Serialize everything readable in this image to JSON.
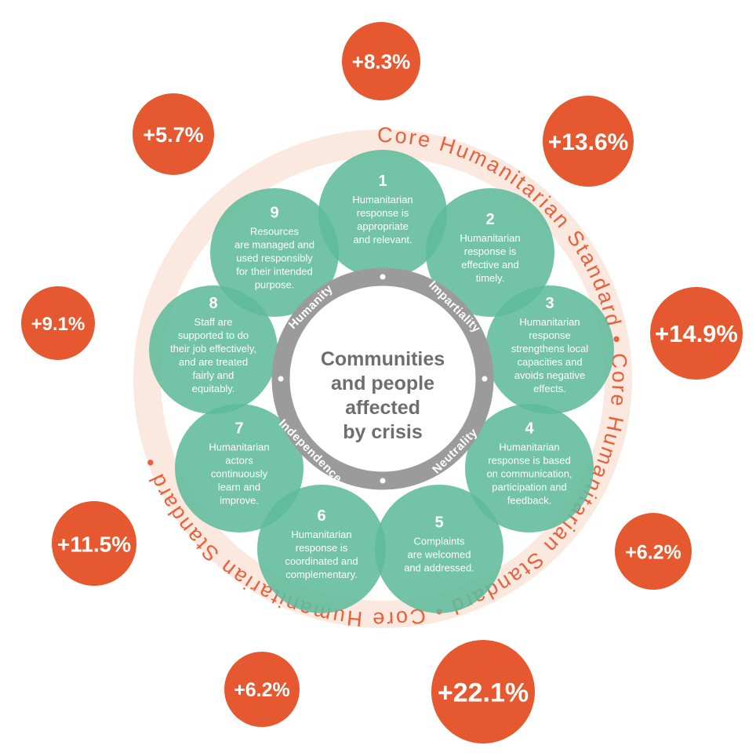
{
  "colors": {
    "orange": "#e6582f",
    "ring_fill": "#fbe8df",
    "ring_text": "#e8603c",
    "teal": "#5fbb9c",
    "grey_ring": "#9b9b9b",
    "center_text": "#6e6e6e"
  },
  "outer_ring": {
    "segments": [
      "Core",
      "Humanitarian",
      "Standard"
    ],
    "repeat": 3
  },
  "principles": [
    "Humanity",
    "Impartiality",
    "Neutrality",
    "Independence"
  ],
  "center": {
    "lines": [
      "Communities",
      "and people",
      "affected",
      "by crisis"
    ]
  },
  "commitments": [
    {
      "number": "1",
      "lines": [
        "Humanitarian",
        "response is",
        "appropriate",
        "and relevant."
      ]
    },
    {
      "number": "2",
      "lines": [
        "Humanitarian",
        "response is",
        "effective and",
        "timely."
      ]
    },
    {
      "number": "3",
      "lines": [
        "Humanitarian",
        "response",
        "strengthens local",
        "capacities and",
        "avoids negative",
        "effects."
      ]
    },
    {
      "number": "4",
      "lines": [
        "Humanitarian",
        "response is based",
        "on communication,",
        "participation and",
        "feedback."
      ]
    },
    {
      "number": "5",
      "lines": [
        "Complaints",
        "are welcomed",
        "and addressed."
      ]
    },
    {
      "number": "6",
      "lines": [
        "Humanitarian",
        "response is",
        "coordinated and",
        "complementary."
      ]
    },
    {
      "number": "7",
      "lines": [
        "Humanitarian",
        "actors",
        "continuously",
        "learn and",
        "improve."
      ]
    },
    {
      "number": "8",
      "lines": [
        "Staff are",
        "supported to do",
        "their job effectively,",
        "and are treated",
        "fairly and",
        "equitably."
      ]
    },
    {
      "number": "9",
      "lines": [
        "Resources",
        "are managed and",
        "used responsibly",
        "for their intended",
        "purpose."
      ]
    }
  ],
  "percentages": [
    "+8.3%",
    "+13.6%",
    "+14.9%",
    "+6.2%",
    "+22.1%",
    "+6.2%",
    "+11.5%",
    "+9.1%",
    "+5.7%"
  ]
}
